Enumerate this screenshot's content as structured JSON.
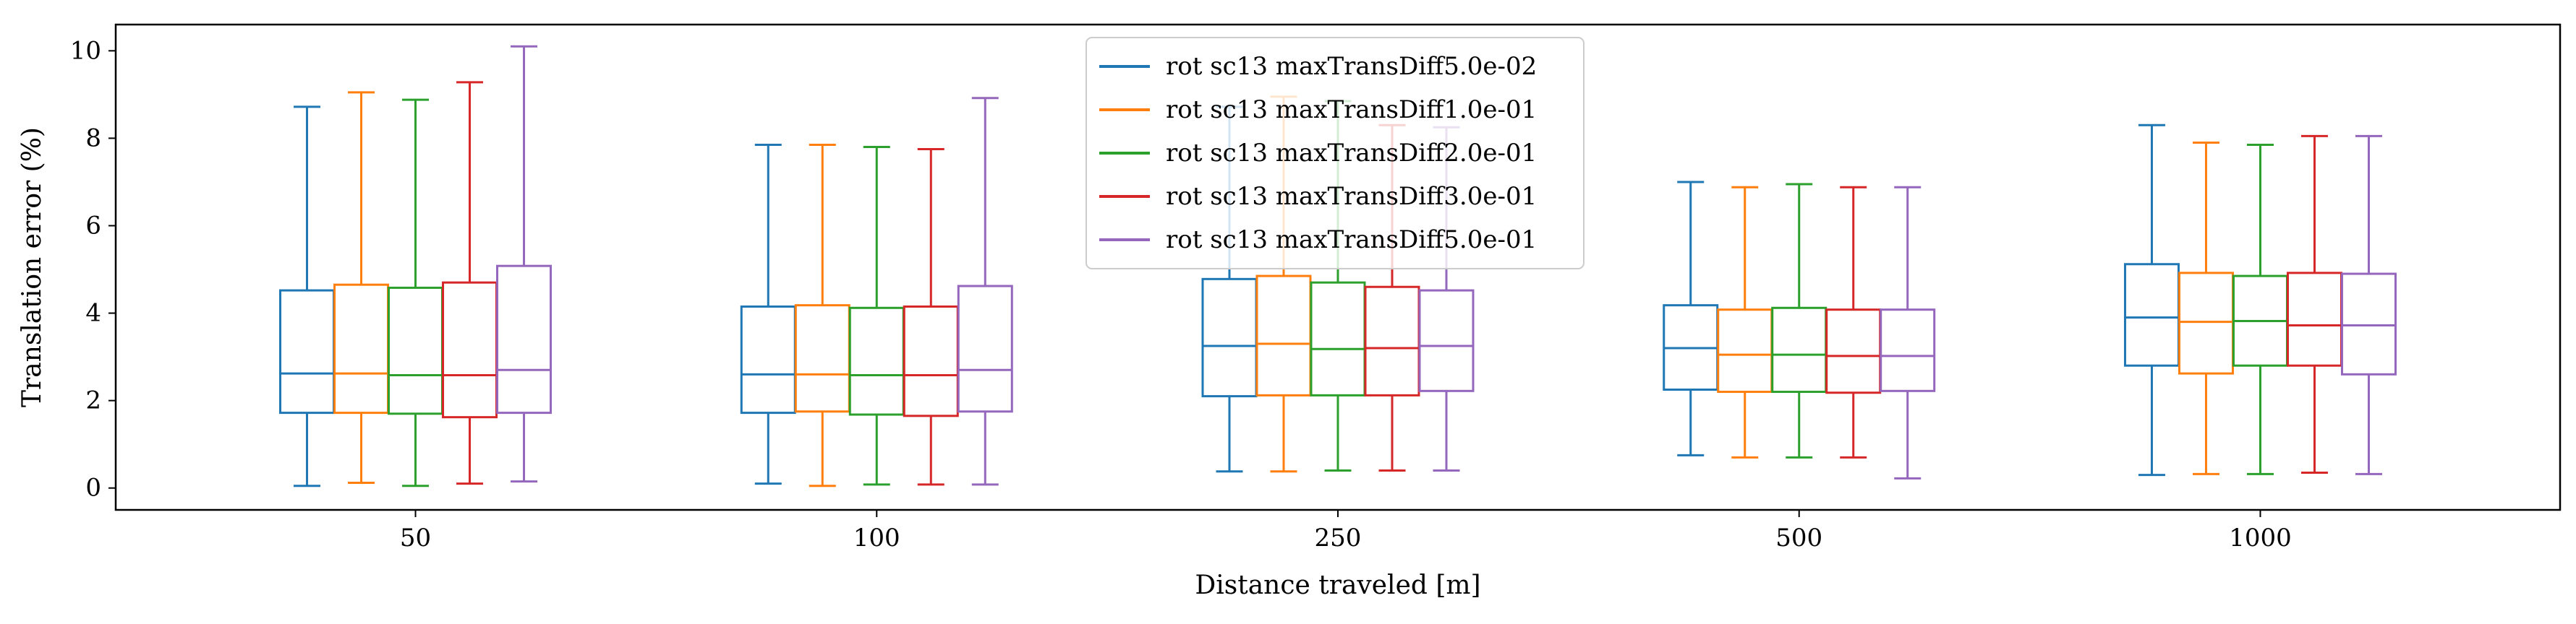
{
  "chart_data": {
    "type": "box",
    "xlabel": "Distance traveled [m]",
    "ylabel": "Translation error (%)",
    "categories": [
      "50",
      "100",
      "250",
      "500",
      "1000"
    ],
    "ylim": [
      -0.5,
      10.6
    ],
    "yticks": [
      0,
      2,
      4,
      6,
      8,
      10
    ],
    "grid": false,
    "legend_position": "top-center",
    "series": [
      {
        "name": "rot sc13 maxTransDiff5.0e-02",
        "color": "#1f77b4",
        "boxes": [
          {
            "whislo": 0.05,
            "q1": 1.72,
            "med": 2.62,
            "q3": 4.52,
            "whishi": 8.72
          },
          {
            "whislo": 0.1,
            "q1": 1.72,
            "med": 2.6,
            "q3": 4.15,
            "whishi": 7.85
          },
          {
            "whislo": 0.38,
            "q1": 2.1,
            "med": 3.25,
            "q3": 4.78,
            "whishi": 8.72
          },
          {
            "whislo": 0.75,
            "q1": 2.25,
            "med": 3.2,
            "q3": 4.18,
            "whishi": 7.0
          },
          {
            "whislo": 0.3,
            "q1": 2.8,
            "med": 3.9,
            "q3": 5.12,
            "whishi": 8.3
          }
        ]
      },
      {
        "name": "rot sc13 maxTransDiff1.0e-01",
        "color": "#ff7f0e",
        "boxes": [
          {
            "whislo": 0.12,
            "q1": 1.72,
            "med": 2.62,
            "q3": 4.65,
            "whishi": 9.05
          },
          {
            "whislo": 0.05,
            "q1": 1.75,
            "med": 2.6,
            "q3": 4.18,
            "whishi": 7.85
          },
          {
            "whislo": 0.38,
            "q1": 2.12,
            "med": 3.3,
            "q3": 4.85,
            "whishi": 8.95
          },
          {
            "whislo": 0.7,
            "q1": 2.2,
            "med": 3.05,
            "q3": 4.08,
            "whishi": 6.88
          },
          {
            "whislo": 0.32,
            "q1": 2.62,
            "med": 3.8,
            "q3": 4.92,
            "whishi": 7.9
          }
        ]
      },
      {
        "name": "rot sc13 maxTransDiff2.0e-01",
        "color": "#2ca02c",
        "boxes": [
          {
            "whislo": 0.05,
            "q1": 1.7,
            "med": 2.58,
            "q3": 4.58,
            "whishi": 8.88
          },
          {
            "whislo": 0.08,
            "q1": 1.68,
            "med": 2.58,
            "q3": 4.12,
            "whishi": 7.8
          },
          {
            "whislo": 0.4,
            "q1": 2.12,
            "med": 3.18,
            "q3": 4.7,
            "whishi": 8.85
          },
          {
            "whislo": 0.7,
            "q1": 2.2,
            "med": 3.05,
            "q3": 4.12,
            "whishi": 6.95
          },
          {
            "whislo": 0.32,
            "q1": 2.8,
            "med": 3.82,
            "q3": 4.85,
            "whishi": 7.85
          }
        ]
      },
      {
        "name": "rot sc13 maxTransDiff3.0e-01",
        "color": "#d62728",
        "boxes": [
          {
            "whislo": 0.1,
            "q1": 1.62,
            "med": 2.58,
            "q3": 4.7,
            "whishi": 9.28
          },
          {
            "whislo": 0.08,
            "q1": 1.65,
            "med": 2.58,
            "q3": 4.15,
            "whishi": 7.75
          },
          {
            "whislo": 0.4,
            "q1": 2.12,
            "med": 3.2,
            "q3": 4.6,
            "whishi": 8.3
          },
          {
            "whislo": 0.7,
            "q1": 2.18,
            "med": 3.02,
            "q3": 4.08,
            "whishi": 6.88
          },
          {
            "whislo": 0.35,
            "q1": 2.8,
            "med": 3.72,
            "q3": 4.92,
            "whishi": 8.05
          }
        ]
      },
      {
        "name": "rot sc13 maxTransDiff5.0e-01",
        "color": "#9467bd",
        "boxes": [
          {
            "whislo": 0.15,
            "q1": 1.72,
            "med": 2.7,
            "q3": 5.08,
            "whishi": 10.1
          },
          {
            "whislo": 0.08,
            "q1": 1.75,
            "med": 2.7,
            "q3": 4.62,
            "whishi": 8.92
          },
          {
            "whislo": 0.4,
            "q1": 2.22,
            "med": 3.25,
            "q3": 4.52,
            "whishi": 8.25
          },
          {
            "whislo": 0.22,
            "q1": 2.22,
            "med": 3.02,
            "q3": 4.08,
            "whishi": 6.88
          },
          {
            "whislo": 0.32,
            "q1": 2.6,
            "med": 3.72,
            "q3": 4.9,
            "whishi": 8.05
          }
        ]
      }
    ]
  }
}
